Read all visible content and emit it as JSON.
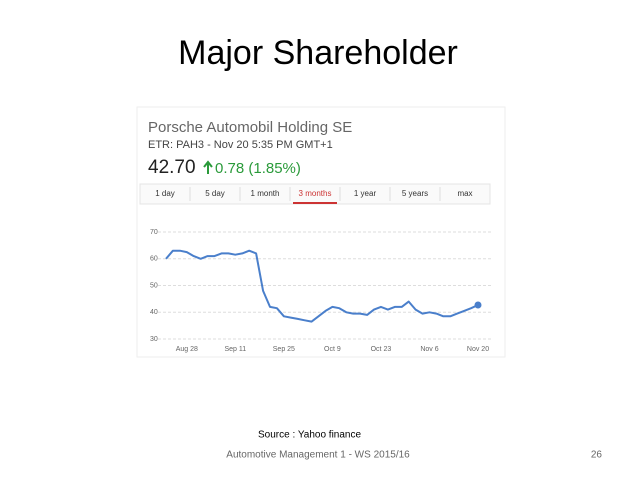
{
  "slide": {
    "title": "Major Shareholder",
    "source": "Source : Yahoo finance",
    "footer": "Automotive Management 1 - WS 2015/16",
    "page_number": "26"
  },
  "widget": {
    "company": "Porsche Automobil Holding SE",
    "quote_info": "ETR: PAH3 - Nov 20 5:35 PM GMT+1",
    "price": "42.70",
    "change": "0.78 (1.85%)",
    "tabs": [
      "1 day",
      "5 day",
      "1 month",
      "3 months",
      "1 year",
      "5 years",
      "max"
    ],
    "active_tab": 3
  },
  "chart_data": {
    "type": "line",
    "color": "#4a7fcb",
    "grid": true,
    "categories": [
      null,
      null,
      null,
      "Aug 28",
      null,
      null,
      null,
      null,
      null,
      null,
      "Sep 11",
      null,
      null,
      null,
      null,
      null,
      null,
      "Sep 25",
      null,
      null,
      null,
      null,
      null,
      null,
      "Oct 9",
      null,
      null,
      null,
      null,
      null,
      null,
      "Oct 23",
      null,
      null,
      null,
      null,
      null,
      null,
      "Nov 6",
      null,
      null,
      null,
      null,
      null,
      null,
      "Nov 20"
    ],
    "values": [
      60,
      63,
      63,
      62.5,
      61,
      60,
      61,
      61,
      62,
      62,
      61.5,
      62,
      63,
      62,
      48,
      42,
      41.5,
      38.5,
      38,
      37.5,
      37,
      36.5,
      38.5,
      40.5,
      42,
      41.5,
      40,
      39.5,
      39.5,
      39,
      41,
      42,
      41,
      42,
      42,
      44,
      41,
      39.5,
      40,
      39.5,
      38.5,
      38.5,
      39.5,
      40.5,
      41.5,
      42.7
    ],
    "ylim": [
      30,
      70
    ],
    "yticks": [
      30,
      40,
      50,
      60,
      70
    ]
  }
}
